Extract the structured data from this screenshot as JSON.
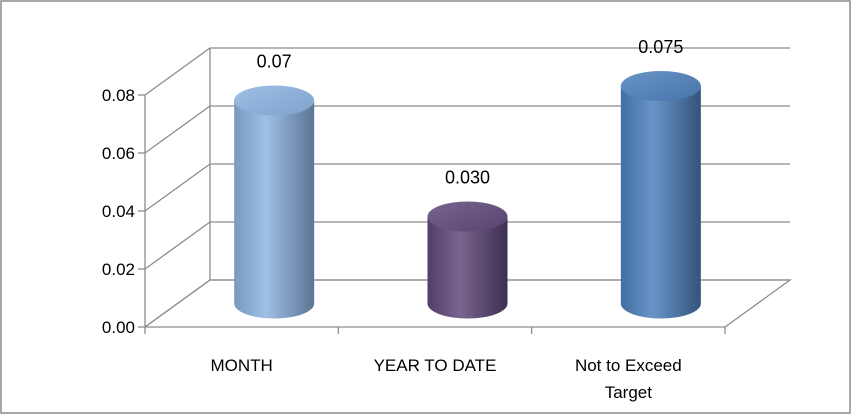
{
  "chart_data": {
    "type": "bar",
    "style": "3d-cylinder",
    "categories": [
      "MONTH",
      "YEAR TO DATE",
      "Not to Exceed Target"
    ],
    "category_lines": [
      [
        "MONTH"
      ],
      [
        "YEAR TO DATE"
      ],
      [
        "Not to Exceed",
        "Target"
      ]
    ],
    "values": [
      0.07,
      0.03,
      0.075
    ],
    "data_labels": [
      "0.07",
      "0.030",
      "0.075"
    ],
    "bar_colors": [
      "#8db4e2",
      "#604a7b",
      "#4f81bd"
    ],
    "ylim": [
      0,
      0.08
    ],
    "yticks": [
      "0.00",
      "0.02",
      "0.04",
      "0.06",
      "0.08"
    ],
    "title": "",
    "xlabel": "",
    "ylabel": "",
    "legend": "none",
    "grid": true
  }
}
